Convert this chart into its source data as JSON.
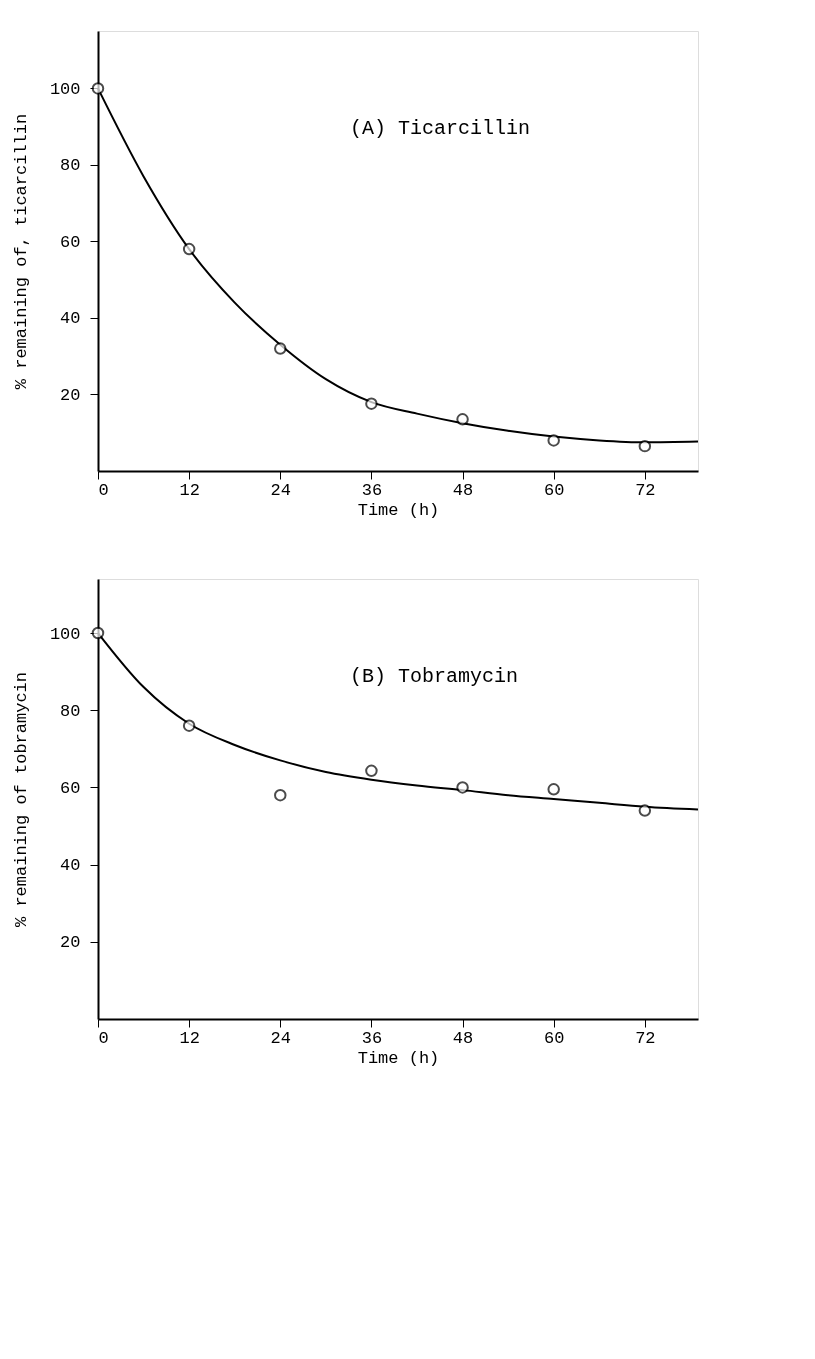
{
  "chart_data": [
    {
      "type": "scatter",
      "xlabel": "Time (h)",
      "ylabel": "% remaining of, ticarcillin",
      "annotations": [
        "(A) Ticarcillin"
      ],
      "xlim": [
        0,
        79
      ],
      "xticks": [
        0,
        12,
        24,
        36,
        48,
        60,
        72
      ],
      "ylim": [
        0,
        115
      ],
      "yticks": [
        20,
        40,
        60,
        80,
        100
      ],
      "series": [
        {
          "marker": "circle",
          "color": "#000000",
          "x": [
            0,
            12,
            24,
            36,
            48,
            60,
            72
          ],
          "values": [
            100,
            58,
            32,
            17.6,
            13.5,
            8,
            6.5
          ]
        },
        {
          "type": "line",
          "line_style": "solid",
          "marker": "none",
          "color": "#000000",
          "x": [
            0,
            6,
            12,
            18,
            24,
            30,
            36,
            42,
            48,
            54,
            60,
            66,
            72,
            79
          ],
          "values": [
            100,
            77,
            58,
            44,
            33,
            24,
            18,
            15,
            12.5,
            10.5,
            9,
            8,
            7.5,
            7.7
          ]
        }
      ]
    },
    {
      "type": "scatter",
      "xlabel": "Time (h)",
      "ylabel": "% remaining of tobramycin",
      "annotations": [
        "(B) Tobramycin"
      ],
      "xlim": [
        0,
        79
      ],
      "xticks": [
        0,
        12,
        24,
        36,
        48,
        60,
        72
      ],
      "ylim": [
        0,
        114
      ],
      "yticks": [
        20,
        40,
        60,
        80,
        100
      ],
      "series": [
        {
          "marker": "circle",
          "color": "#000000",
          "x": [
            0,
            12,
            24,
            36,
            48,
            60,
            72
          ],
          "values": [
            100,
            76,
            58,
            64.3,
            60,
            59.5,
            54
          ]
        },
        {
          "type": "line",
          "line_style": "solid",
          "marker": "none",
          "color": "#000000",
          "x": [
            0,
            6,
            12,
            18,
            24,
            30,
            36,
            42,
            48,
            54,
            60,
            66,
            72,
            79
          ],
          "values": [
            100,
            86,
            76.5,
            71,
            67,
            64,
            62,
            60.5,
            59.3,
            58,
            57,
            56,
            55,
            54.3
          ]
        }
      ]
    }
  ]
}
